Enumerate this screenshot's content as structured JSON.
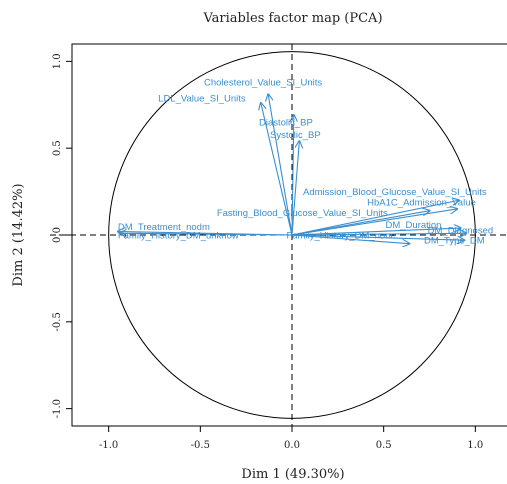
{
  "chart_data": {
    "type": "scatter",
    "subtype": "pca-correlation-circle",
    "title": "Variables factor map (PCA)",
    "xlabel": "Dim 1 (49.30%)",
    "ylabel": "Dim 2 (14.42%)",
    "xlim": [
      -1.2,
      1.2
    ],
    "ylim": [
      -1.1,
      1.1
    ],
    "xticks": [
      -1.0,
      -0.5,
      0.0,
      0.5,
      1.0
    ],
    "xtick_labels": [
      "-1.0",
      "-0.5",
      "0.0",
      "0.5",
      "1.0"
    ],
    "yticks": [
      -1.0,
      -0.5,
      0.0,
      0.5,
      1.0
    ],
    "ytick_labels": [
      "-1.0",
      "-0.5",
      "0.0",
      "0.5",
      "1.0"
    ],
    "arrow_color": "#3a8fd1",
    "grid": false,
    "variables": [
      {
        "name": "Cholesterol_Value_SI_Units",
        "x": -0.13,
        "y": 0.81
      },
      {
        "name": "LDL_Value_SI_Units",
        "x": -0.17,
        "y": 0.76
      },
      {
        "name": "Diastolic_BP",
        "x": 0.01,
        "y": 0.69
      },
      {
        "name": "Systolic_BP",
        "x": 0.04,
        "y": 0.54
      },
      {
        "name": "Admission_Blood_Glucose_Value_SI_Units",
        "x": 0.91,
        "y": 0.2
      },
      {
        "name": "HbA1C_Admission_Value",
        "x": 0.9,
        "y": 0.15
      },
      {
        "name": "Fasting_Blood_Glucose_Value_SI_Units",
        "x": 0.75,
        "y": 0.14
      },
      {
        "name": "DM_Duration",
        "x": 0.92,
        "y": 0.04
      },
      {
        "name": "DM_Type_DM",
        "x": 0.94,
        "y": -0.03
      },
      {
        "name": "DM_Diagnosed",
        "x": 0.95,
        "y": 0.01
      },
      {
        "name": "Family_History_DM_none",
        "x": 0.64,
        "y": -0.05
      },
      {
        "name": "DM_Treatment_nodm",
        "x": -0.95,
        "y": 0.02
      },
      {
        "name": "Family_History_DM_unknow",
        "x": -0.94,
        "y": 0.01
      }
    ],
    "labels": [
      {
        "text": "Cholesterol_Value_SI_Units",
        "x": -0.48,
        "y": 0.86
      },
      {
        "text": "LDL_Value_SI_Units",
        "x": -0.73,
        "y": 0.77
      },
      {
        "text": "Diastolic_BP",
        "x": -0.18,
        "y": 0.63
      },
      {
        "text": "Systolic_BP",
        "x": -0.12,
        "y": 0.56
      },
      {
        "text": "Admission_Blood_Glucose_Value_SI_Units",
        "x": 0.06,
        "y": 0.23
      },
      {
        "text": "HbA1C_Admission_Value",
        "x": 0.41,
        "y": 0.17
      },
      {
        "text": "Fasting_Blood_Glucose_Value_SI_Units",
        "x": -0.41,
        "y": 0.11
      },
      {
        "text": "DM_Duration",
        "x": 0.51,
        "y": 0.04
      },
      {
        "text": "DM_Type_DM",
        "x": 0.72,
        "y": -0.05
      },
      {
        "text": "DM_Diagnosed",
        "x": 0.74,
        "y": 0.01
      },
      {
        "text": "Family_History_DM_none",
        "x": -0.03,
        "y": -0.02
      },
      {
        "text": "DM_Treatment_nodm",
        "x": -0.95,
        "y": 0.03
      },
      {
        "text": "Family_History_DM_unknow",
        "x": -0.95,
        "y": -0.02
      }
    ]
  }
}
